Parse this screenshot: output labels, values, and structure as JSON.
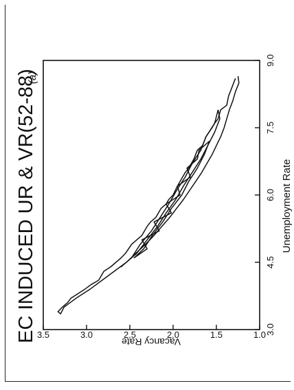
{
  "chart_data": {
    "type": "line",
    "panel_label": "(a)",
    "title": "EC INDUCED UR & VR(52-88)",
    "xlabel": "Unemployment Rate",
    "ylabel": "Vacancy Rate",
    "xlim": [
      3.0,
      9.0
    ],
    "ylim": [
      1.0,
      3.5
    ],
    "x_ticks": [
      "3.0",
      "4.5",
      "6.0",
      "7.5",
      "9.0"
    ],
    "y_ticks": [
      "1.0",
      "1.5",
      "2.0",
      "2.5",
      "3.0",
      "3.5"
    ],
    "series": [
      {
        "x": [
          8.6,
          8.4,
          8.2,
          8.0,
          7.9,
          7.7,
          7.6,
          7.5,
          7.3,
          7.1,
          7.0,
          6.8,
          6.6,
          6.5,
          6.3,
          6.2,
          6.0,
          5.9,
          5.8,
          5.7,
          5.5,
          5.4,
          5.3,
          5.1,
          5.0,
          4.9,
          4.7,
          4.6,
          4.5,
          4.4,
          4.3,
          4.1,
          4.0,
          3.9,
          3.8,
          3.7,
          3.6,
          3.5,
          3.4,
          3.35,
          3.5,
          3.7,
          3.9,
          4.1,
          4.3,
          4.5,
          4.7,
          4.9,
          5.1,
          5.3,
          5.5,
          5.7,
          5.9,
          6.1,
          6.3,
          6.5,
          6.7,
          6.9,
          7.1,
          7.3,
          7.5,
          7.7,
          7.9,
          8.1,
          8.3,
          8.5,
          8.65
        ],
        "y": [
          1.28,
          1.32,
          1.36,
          1.38,
          1.45,
          1.48,
          1.52,
          1.55,
          1.62,
          1.66,
          1.72,
          1.76,
          1.82,
          1.86,
          1.92,
          1.95,
          2.0,
          2.05,
          2.08,
          2.14,
          2.2,
          2.26,
          2.3,
          2.36,
          2.42,
          2.48,
          2.55,
          2.6,
          2.66,
          2.72,
          2.8,
          2.86,
          2.95,
          3.02,
          3.1,
          3.18,
          3.22,
          3.28,
          3.33,
          3.3,
          3.26,
          3.12,
          2.96,
          2.82,
          2.68,
          2.54,
          2.43,
          2.32,
          2.22,
          2.13,
          2.04,
          1.96,
          1.88,
          1.81,
          1.74,
          1.67,
          1.61,
          1.55,
          1.5,
          1.45,
          1.41,
          1.38,
          1.35,
          1.31,
          1.28,
          1.24,
          1.25
        ]
      },
      {
        "x": [
          7.9,
          7.6,
          7.3,
          7.0,
          6.7,
          6.4,
          6.1,
          5.8,
          5.5,
          5.2,
          4.9,
          4.6,
          4.4,
          4.7,
          5.0,
          5.3,
          5.6,
          5.9,
          6.2,
          6.5,
          6.8,
          7.1,
          7.4,
          7.7,
          7.9
        ],
        "y": [
          1.48,
          1.52,
          1.62,
          1.68,
          1.78,
          1.86,
          1.96,
          2.05,
          2.15,
          2.25,
          2.38,
          2.48,
          2.6,
          2.42,
          2.3,
          2.18,
          2.08,
          1.97,
          1.88,
          1.78,
          1.68,
          1.6,
          1.52,
          1.46,
          1.48
        ]
      },
      {
        "x": [
          7.2,
          7.0,
          6.8,
          6.6,
          6.4,
          6.2,
          6.0,
          5.8,
          5.6,
          5.4,
          5.2,
          5.0,
          4.8,
          4.6,
          4.8,
          5.1,
          5.4,
          5.7,
          6.0,
          6.3,
          6.6,
          6.9,
          7.2
        ],
        "y": [
          1.58,
          1.7,
          1.72,
          1.84,
          1.8,
          1.95,
          1.92,
          2.08,
          2.02,
          2.22,
          2.16,
          2.36,
          2.3,
          2.45,
          2.34,
          2.24,
          2.12,
          2.02,
          1.9,
          1.82,
          1.72,
          1.64,
          1.58
        ]
      }
    ]
  }
}
